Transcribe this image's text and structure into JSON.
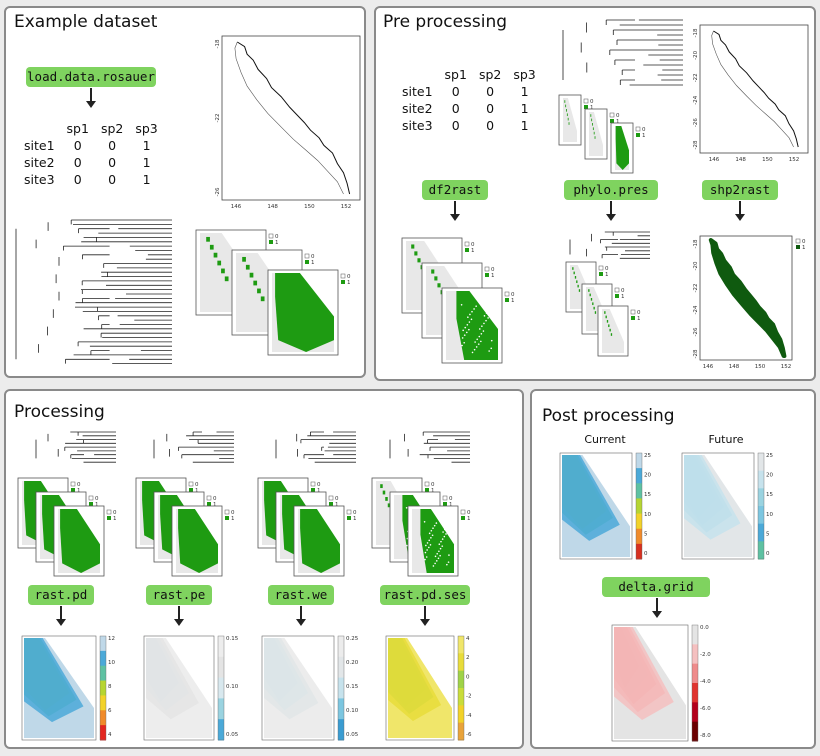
{
  "panels": {
    "example": {
      "title": "Example dataset",
      "fn": "load.data.rosauer"
    },
    "pre": {
      "title": "Pre processing",
      "fns": [
        "df2rast",
        "phylo.pres",
        "shp2rast"
      ]
    },
    "processing": {
      "title": "Processing",
      "fns": [
        "rast.pd",
        "rast.pe",
        "rast.we",
        "rast.pd.ses"
      ]
    },
    "post": {
      "title": "Post processing",
      "current": "Current",
      "future": "Future",
      "fn": "delta.grid"
    }
  },
  "matrix": {
    "cols": [
      "sp1",
      "sp2",
      "sp3"
    ],
    "rows": [
      {
        "name": "site1",
        "values": [
          "0",
          "0",
          "1"
        ]
      },
      {
        "name": "site2",
        "values": [
          "0",
          "0",
          "1"
        ]
      },
      {
        "name": "site3",
        "values": [
          "0",
          "0",
          "1"
        ]
      }
    ]
  },
  "map_axes": {
    "x_ticks": [
      "146",
      "148",
      "150",
      "152"
    ],
    "y_ticks": [
      "-18",
      "-20",
      "-22",
      "-24",
      "-26",
      "-28"
    ],
    "y_ticks_sparse": [
      "-18",
      "-22",
      "-26"
    ]
  },
  "raster_legend": [
    "0",
    "1"
  ],
  "colorbars": {
    "pd": [
      "12",
      "10",
      "8",
      "6",
      "4"
    ],
    "pe": [
      "0.15",
      "0.10",
      "0.05"
    ],
    "we": [
      "0.25",
      "0.20",
      "0.15",
      "0.10",
      "0.05"
    ],
    "ses": [
      "4",
      "2",
      "0",
      "-2",
      "-4",
      "-6"
    ],
    "current": [
      "25",
      "20",
      "15",
      "10",
      "5",
      "0"
    ],
    "future": [
      "25",
      "20",
      "15",
      "10",
      "5",
      "0"
    ],
    "delta": [
      "0.0",
      "-2.0",
      "-4.0",
      "-6.0",
      "-8.0"
    ]
  },
  "colors": {
    "green_fn": "#7fd35f",
    "raster_green": "#1e9b12",
    "dark_green": "#0f5a0f"
  }
}
